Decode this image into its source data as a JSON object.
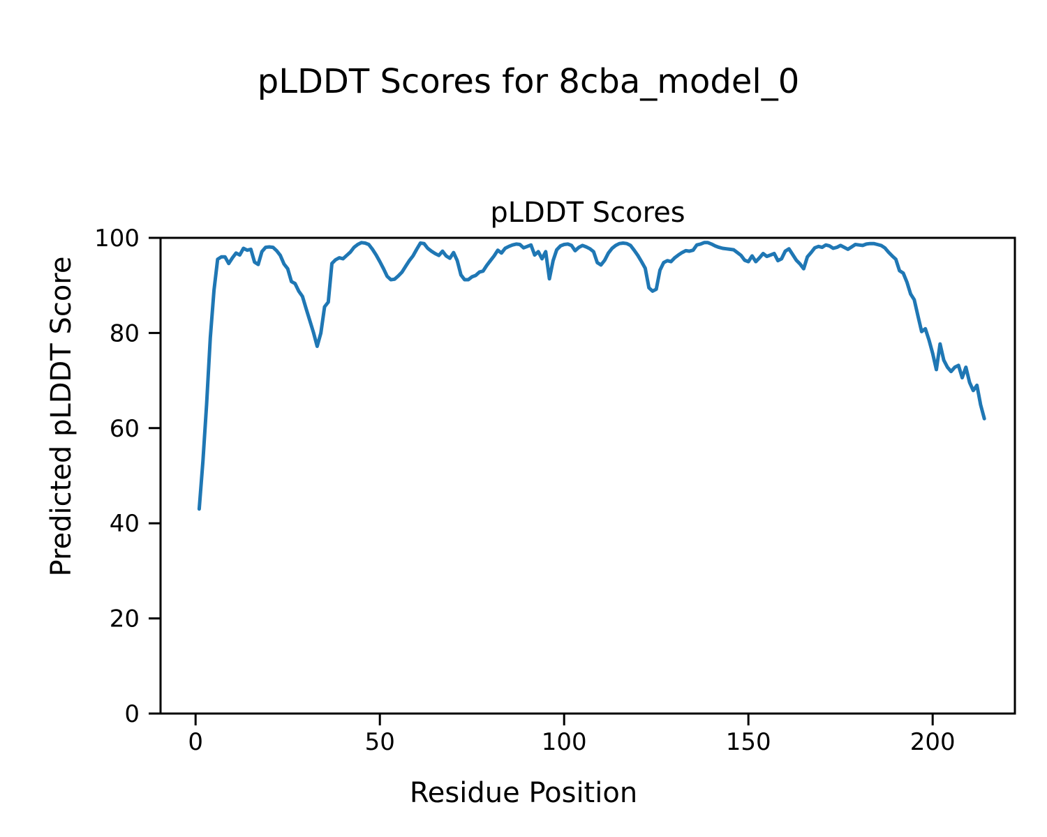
{
  "chart_data": {
    "type": "line",
    "suptitle": "pLDDT Scores for 8cba_model_0",
    "title": "pLDDT Scores",
    "xlabel": "Residue Position",
    "ylabel": "Predicted pLDDT Score",
    "x_ticks": [
      0,
      50,
      100,
      150,
      200
    ],
    "y_ticks": [
      0,
      20,
      40,
      60,
      80,
      100
    ],
    "xlim": [
      -9.5,
      222.3
    ],
    "ylim": [
      0,
      100
    ],
    "grid": false,
    "legend": false,
    "line_color": "#1f77b4",
    "background": "#ffffff",
    "series_name": "pLDDT",
    "x": [
      1,
      2,
      3,
      4,
      5,
      6,
      7,
      8,
      9,
      10,
      11,
      12,
      13,
      14,
      15,
      16,
      17,
      18,
      19,
      20,
      21,
      22,
      23,
      24,
      25,
      26,
      27,
      28,
      29,
      30,
      31,
      32,
      33,
      34,
      35,
      36,
      37,
      38,
      39,
      40,
      41,
      42,
      43,
      44,
      45,
      46,
      47,
      48,
      49,
      50,
      51,
      52,
      53,
      54,
      55,
      56,
      57,
      58,
      59,
      60,
      61,
      62,
      63,
      64,
      65,
      66,
      67,
      68,
      69,
      70,
      71,
      72,
      73,
      74,
      75,
      76,
      77,
      78,
      79,
      80,
      81,
      82,
      83,
      84,
      85,
      86,
      87,
      88,
      89,
      90,
      91,
      92,
      93,
      94,
      95,
      96,
      97,
      98,
      99,
      100,
      101,
      102,
      103,
      104,
      105,
      106,
      107,
      108,
      109,
      110,
      111,
      112,
      113,
      114,
      115,
      116,
      117,
      118,
      119,
      120,
      121,
      122,
      123,
      124,
      125,
      126,
      127,
      128,
      129,
      130,
      131,
      132,
      133,
      134,
      135,
      136,
      137,
      138,
      139,
      140,
      141,
      142,
      143,
      144,
      145,
      146,
      147,
      148,
      149,
      150,
      151,
      152,
      153,
      154,
      155,
      156,
      157,
      158,
      159,
      160,
      161,
      162,
      163,
      164,
      165,
      166,
      167,
      168,
      169,
      170,
      171,
      172,
      173,
      174,
      175,
      176,
      177,
      178,
      179,
      180,
      181,
      182,
      183,
      184,
      185,
      186,
      187,
      188,
      189,
      190,
      191,
      192,
      193,
      194,
      195,
      196,
      197,
      198,
      199,
      200,
      201,
      202,
      203,
      204,
      205,
      206,
      207,
      208,
      209,
      210,
      211,
      212,
      213,
      214
    ],
    "y": [
      43.0,
      53.0,
      65.0,
      79.0,
      89.0,
      95.5,
      96.0,
      96.0,
      94.6,
      95.8,
      96.8,
      96.4,
      97.8,
      97.4,
      97.6,
      94.9,
      94.4,
      97.1,
      98.0,
      98.1,
      98.0,
      97.3,
      96.3,
      94.5,
      93.5,
      90.8,
      90.4,
      88.8,
      87.7,
      85.1,
      82.6,
      80.1,
      77.2,
      80.0,
      85.5,
      86.5,
      94.6,
      95.4,
      95.8,
      95.6,
      96.3,
      97.0,
      98.0,
      98.6,
      99.0,
      98.9,
      98.6,
      97.6,
      96.4,
      95.0,
      93.5,
      91.9,
      91.2,
      91.3,
      92.0,
      92.8,
      94.0,
      95.2,
      96.2,
      97.6,
      98.9,
      98.8,
      97.8,
      97.2,
      96.7,
      96.3,
      97.2,
      96.2,
      95.7,
      96.9,
      95.2,
      92.2,
      91.2,
      91.2,
      91.8,
      92.1,
      92.8,
      93.0,
      94.2,
      95.2,
      96.2,
      97.4,
      96.8,
      97.8,
      98.2,
      98.5,
      98.7,
      98.6,
      97.9,
      98.2,
      98.5,
      96.4,
      97.1,
      95.6,
      97.1,
      91.4,
      95.2,
      97.5,
      98.3,
      98.6,
      98.7,
      98.4,
      97.3,
      98.0,
      98.4,
      98.1,
      97.7,
      97.1,
      94.8,
      94.3,
      95.3,
      96.8,
      97.8,
      98.4,
      98.8,
      98.9,
      98.8,
      98.4,
      97.4,
      96.3,
      95.0,
      93.6,
      89.5,
      88.8,
      89.2,
      93.2,
      94.8,
      95.2,
      95.0,
      95.8,
      96.4,
      96.9,
      97.3,
      97.2,
      97.4,
      98.5,
      98.7,
      99.0,
      99.0,
      98.7,
      98.3,
      98.0,
      97.8,
      97.7,
      97.6,
      97.5,
      96.9,
      96.3,
      95.3,
      95.0,
      96.2,
      95.0,
      95.8,
      96.7,
      96.1,
      96.4,
      96.7,
      95.2,
      95.6,
      97.2,
      97.7,
      96.5,
      95.3,
      94.5,
      93.5,
      96.0,
      96.9,
      97.9,
      98.2,
      98.0,
      98.5,
      98.3,
      97.8,
      98.0,
      98.4,
      98.0,
      97.6,
      98.1,
      98.6,
      98.5,
      98.4,
      98.7,
      98.8,
      98.8,
      98.6,
      98.4,
      97.9,
      97.0,
      96.2,
      95.5,
      93.1,
      92.6,
      90.7,
      88.2,
      87.0,
      83.6,
      80.3,
      80.9,
      78.5,
      75.7,
      72.3,
      77.7,
      74.3,
      72.8,
      71.9,
      72.8,
      73.2,
      70.6,
      72.8,
      69.6,
      67.9,
      69.0,
      64.9,
      62.0
    ]
  }
}
